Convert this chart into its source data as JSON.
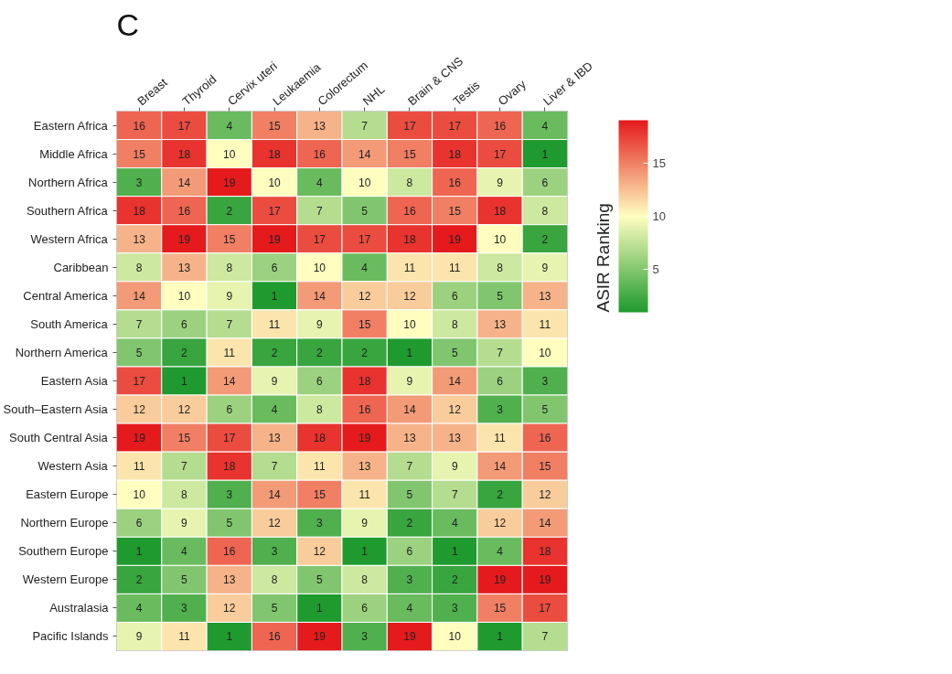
{
  "chart_data": {
    "type": "heatmap",
    "title": "C",
    "clabel": "ASIR Ranking",
    "categories": [
      "Breast",
      "Thyroid",
      "Cervix uteri",
      "Leukaemia",
      "Colorectum",
      "NHL",
      "Brain & CNS",
      "Testis",
      "Ovary",
      "Liver & IBD"
    ],
    "y_categories": [
      "Eastern Africa",
      "Middle Africa",
      "Northern Africa",
      "Southern Africa",
      "Western Africa",
      "Caribbean",
      "Central America",
      "South America",
      "Northern America",
      "Eastern Asia",
      "South–Eastern Asia",
      "South Central Asia",
      "Western Asia",
      "Eastern Europe",
      "Northern Europe",
      "Southern Europe",
      "Western Europe",
      "Australasia",
      "Pacific Islands"
    ],
    "cells": [
      [
        16,
        17,
        4,
        15,
        13,
        7,
        17,
        17,
        16,
        4
      ],
      [
        15,
        18,
        10,
        18,
        16,
        14,
        15,
        18,
        17,
        1
      ],
      [
        3,
        14,
        19,
        10,
        4,
        10,
        8,
        16,
        9,
        6
      ],
      [
        18,
        16,
        2,
        17,
        7,
        5,
        16,
        15,
        18,
        8
      ],
      [
        13,
        19,
        15,
        19,
        17,
        17,
        18,
        19,
        10,
        2
      ],
      [
        8,
        13,
        8,
        6,
        10,
        4,
        11,
        11,
        8,
        9
      ],
      [
        14,
        10,
        9,
        1,
        14,
        12,
        12,
        6,
        5,
        13
      ],
      [
        7,
        6,
        7,
        11,
        9,
        15,
        10,
        8,
        13,
        11
      ],
      [
        5,
        2,
        11,
        2,
        2,
        2,
        1,
        5,
        7,
        10
      ],
      [
        17,
        1,
        14,
        9,
        6,
        18,
        9,
        14,
        6,
        3
      ],
      [
        12,
        12,
        6,
        4,
        8,
        16,
        14,
        12,
        3,
        5
      ],
      [
        19,
        15,
        17,
        13,
        18,
        19,
        13,
        13,
        11,
        16
      ],
      [
        11,
        7,
        18,
        7,
        11,
        13,
        7,
        9,
        14,
        15
      ],
      [
        10,
        8,
        3,
        14,
        15,
        11,
        5,
        7,
        2,
        12
      ],
      [
        6,
        9,
        5,
        12,
        3,
        9,
        2,
        4,
        12,
        14
      ],
      [
        1,
        4,
        16,
        3,
        12,
        1,
        6,
        1,
        4,
        18
      ],
      [
        2,
        5,
        13,
        8,
        5,
        8,
        3,
        2,
        19,
        19
      ],
      [
        4,
        3,
        12,
        5,
        1,
        6,
        4,
        3,
        15,
        17
      ],
      [
        9,
        11,
        1,
        16,
        19,
        3,
        19,
        10,
        1,
        7
      ]
    ],
    "colors": [
      "#1f9a2e",
      "#ffffbf",
      "#e51a1c"
    ],
    "clim": [
      1,
      19
    ],
    "cticks": [
      5,
      10,
      15
    ],
    "data_labels": true
  }
}
